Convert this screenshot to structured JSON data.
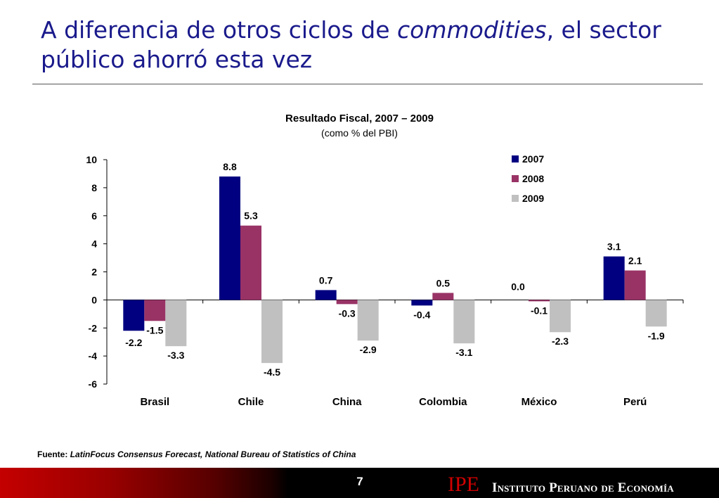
{
  "slide": {
    "title_part1": "A diferencia de otros ciclos de ",
    "title_italic": "commodities",
    "title_part2": ", el sector público ahorró esta vez",
    "page_number": "7"
  },
  "footer": {
    "source_label": "Fuente:",
    "source_text": "LatinFocus Consensus Forecast, National Bureau of Statistics of China",
    "logo_text": "IPE",
    "org_name": "Instituto Peruano de Economía"
  },
  "chart_data": {
    "type": "bar",
    "title": "Resultado Fiscal, 2007 – 2009",
    "subtitle": "(como % del PBI)",
    "categories": [
      "Brasil",
      "Chile",
      "China",
      "Colombia",
      "México",
      "Perú"
    ],
    "series": [
      {
        "name": "2007",
        "color": "#000080",
        "values": [
          -2.2,
          8.8,
          0.7,
          -0.4,
          0.0,
          3.1
        ],
        "labels": [
          "-2.2",
          "8.8",
          "0.7",
          "-0.4",
          "0.0",
          "3.1"
        ]
      },
      {
        "name": "2008",
        "color": "#993366",
        "values": [
          -1.5,
          5.3,
          -0.3,
          0.5,
          -0.1,
          2.1
        ],
        "labels": [
          "-1.5",
          "5.3",
          "-0.3",
          "0.5",
          "-0.1",
          "2.1"
        ]
      },
      {
        "name": "2009",
        "color": "#c0c0c0",
        "values": [
          -3.3,
          -4.5,
          -2.9,
          -3.1,
          -2.3,
          -1.9
        ],
        "labels": [
          "-3.3",
          "-4.5",
          "-2.9",
          "-3.1",
          "-2.3",
          "-1.9"
        ]
      }
    ],
    "ylim": [
      -6,
      10
    ],
    "yticks": [
      10,
      8,
      6,
      4,
      2,
      0,
      -2,
      -4,
      -6
    ],
    "legend_position": "top-right",
    "grid": false
  }
}
